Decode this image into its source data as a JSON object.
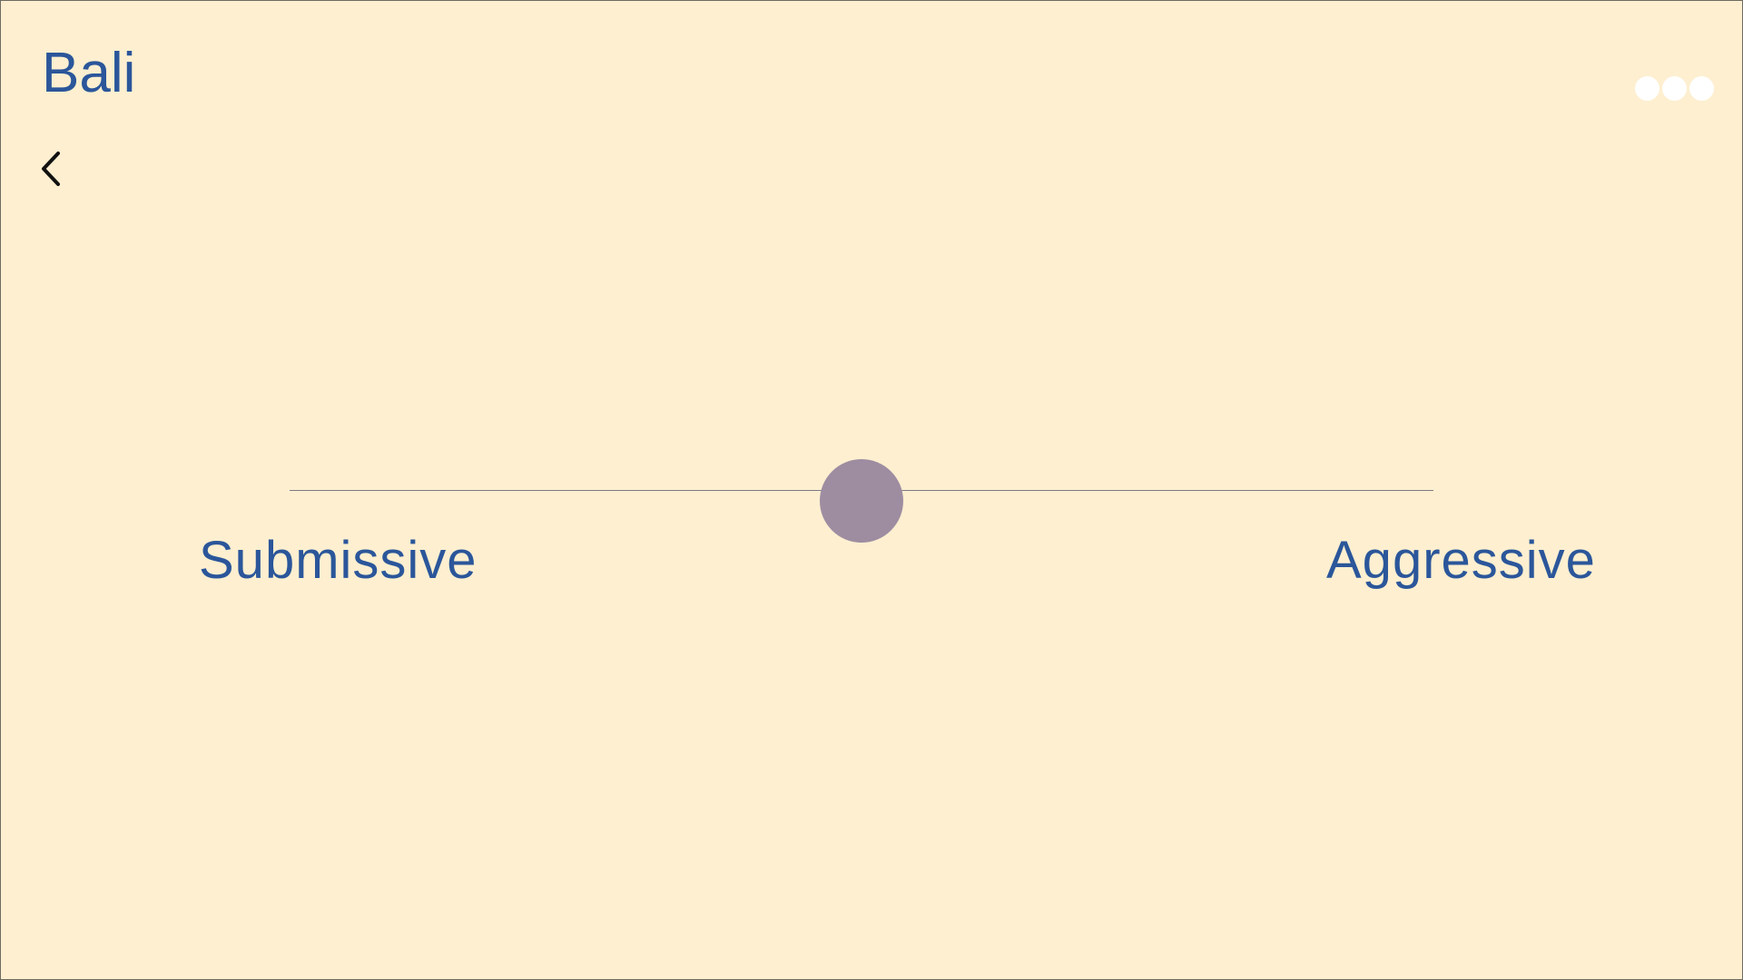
{
  "header": {
    "title": "Bali"
  },
  "navigation": {
    "back_icon": "chevron-left-icon",
    "menu_icon": "more-dots-icon"
  },
  "slider": {
    "min_label": "Submissive",
    "max_label": "Aggressive",
    "value": 0.5
  },
  "colors": {
    "background": "#fdefd0",
    "accent_text": "#2b569a",
    "thumb": "#9e8da1",
    "track": "#7d7b86",
    "menu_dots": "#ffffff"
  }
}
